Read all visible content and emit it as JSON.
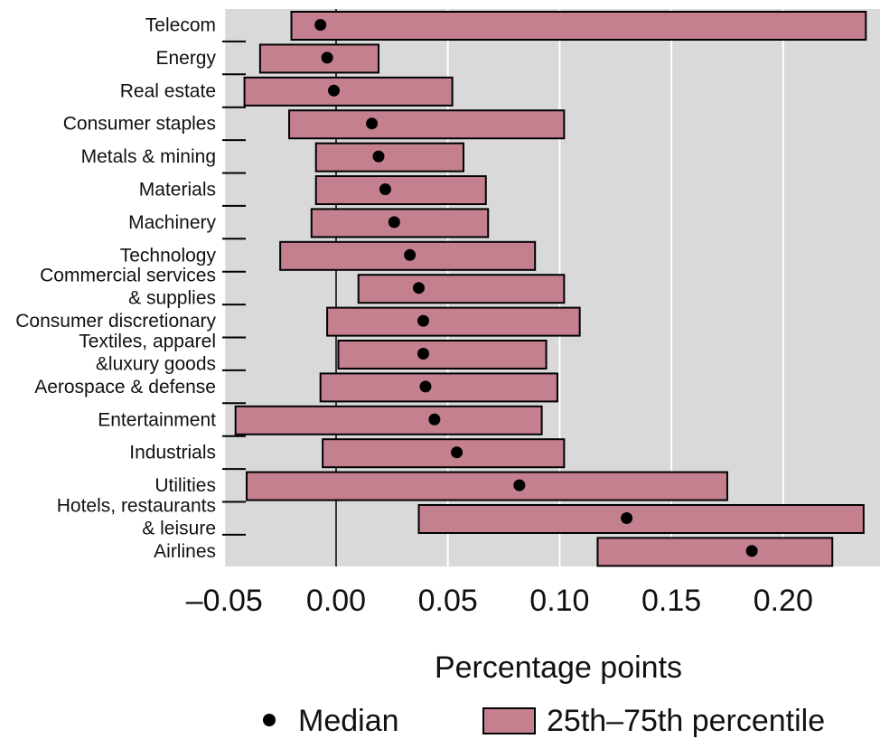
{
  "chart_data": {
    "type": "bar",
    "orientation": "horizontal",
    "categories": [
      "Telecom",
      "Energy",
      "Real estate",
      "Consumer staples",
      "Metals & mining",
      "Materials",
      "Machinery",
      "Technology",
      [
        "Commercial services",
        "& supplies"
      ],
      "Consumer discretionary",
      [
        "Textiles, apparel",
        "&luxury goods"
      ],
      "Aerospace & defense",
      "Entertainment",
      "Industrials",
      "Utilities",
      [
        "Hotels, restaurants",
        "& leisure"
      ],
      "Airlines"
    ],
    "series": [
      {
        "name": "25th–75th percentile",
        "kind": "range",
        "low": [
          -0.02,
          -0.034,
          -0.041,
          -0.021,
          -0.009,
          -0.009,
          -0.011,
          -0.025,
          0.01,
          -0.004,
          0.001,
          -0.007,
          -0.045,
          -0.006,
          -0.04,
          0.037,
          0.117
        ],
        "high": [
          0.237,
          0.019,
          0.052,
          0.102,
          0.057,
          0.067,
          0.068,
          0.089,
          0.102,
          0.109,
          0.094,
          0.099,
          0.092,
          0.102,
          0.175,
          0.236,
          0.222
        ]
      },
      {
        "name": "Median",
        "kind": "point",
        "values": [
          -0.007,
          -0.004,
          -0.001,
          0.016,
          0.019,
          0.022,
          0.026,
          0.033,
          0.037,
          0.039,
          0.039,
          0.04,
          0.044,
          0.054,
          0.082,
          0.13,
          0.186
        ]
      }
    ],
    "xlabel": "Percentage points",
    "xlim": [
      -0.05,
      0.24
    ],
    "xticks": [
      -0.05,
      0.0,
      0.05,
      0.1,
      0.15,
      0.2
    ],
    "xtick_labels": [
      "–0.05",
      "0.00",
      "0.05",
      "0.10",
      "0.15",
      "0.20"
    ],
    "zero_line": true,
    "grid": true,
    "legend": {
      "position": "bottom",
      "items": [
        {
          "label": "Median",
          "marker": "dot"
        },
        {
          "label": "25th–75th percentile",
          "marker": "box"
        }
      ]
    },
    "colors": {
      "panel_background": "#d9d9d9",
      "grid": "#ffffff",
      "bar_fill": "#c4808f",
      "bar_stroke": "#000000",
      "median": "#000000"
    }
  }
}
